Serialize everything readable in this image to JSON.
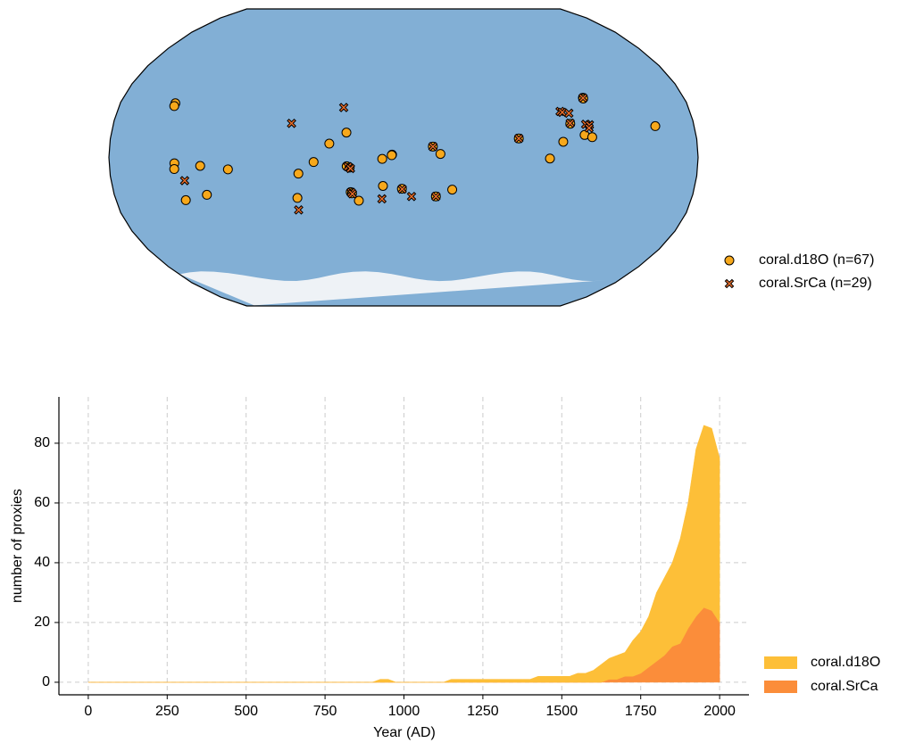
{
  "chart_data": [
    {
      "type": "map",
      "projection": "robinson",
      "central_longitude": 180,
      "series": [
        {
          "name": "coral.d18O (n=67)",
          "color": "#f7a81b",
          "marker": "circle",
          "lon": [
            35,
            34.8,
            39.8,
            39.5,
            55.5,
            43.6,
            57.6,
            72.4,
            115.5,
            113.7,
            125,
            134.5,
            144.8,
            145.2,
            147,
            152,
            147.2,
            148,
            167,
            173,
            172.8,
            167.3,
            179,
            -162,
            -157.4,
            -149.8,
            -109.2,
            -90.5,
            -82,
            -68.5,
            -64,
            -64.7,
            -64.7,
            -76.5,
            -24,
            -159.8
          ],
          "lat": [
            29.4,
            27.9,
            -3.2,
            -6.3,
            -4.6,
            -23.2,
            -20.3,
            -6.5,
            -8.8,
            -22,
            -2.5,
            7.5,
            13.5,
            -4.8,
            -5.5,
            -23.5,
            -18.8,
            -19.5,
            -0.8,
            1.5,
            1.2,
            -15.5,
            -17,
            5.9,
            1.9,
            -17.5,
            10.3,
            -0.6,
            8.5,
            12.2,
            11,
            32.4,
            32,
            18.3,
            17,
            -21.2
          ]
        },
        {
          "name": "coral.SrCa (n=29)",
          "color": "#ec6e2a",
          "marker": "x",
          "lon": [
            110.5,
            142.2,
            146,
            147.5,
            147.5,
            148.2,
            166.5,
            179.2,
            -175,
            -159.8,
            -162,
            -109.2,
            45.2,
            113.5,
            -81.5,
            -80.2,
            -76.2,
            -76.5,
            -64.7,
            -67,
            -64.7,
            -65.2
          ],
          "lat": [
            18.5,
            27.1,
            -5,
            -6,
            -19,
            -19.8,
            -22.5,
            -17.2,
            -21.2,
            -21.2,
            5.9,
            10.3,
            -12.6,
            -28.5,
            25,
            24.5,
            24,
            18.6,
            32.3,
            18,
            17.7,
            16
          ]
        }
      ]
    },
    {
      "type": "area",
      "stacked": true,
      "xlabel": "Year (AD)",
      "ylabel": "number of proxies",
      "x": [
        0,
        900,
        925,
        950,
        975,
        1000,
        1025,
        1050,
        1075,
        1100,
        1125,
        1150,
        1175,
        1200,
        1225,
        1250,
        1275,
        1300,
        1325,
        1350,
        1375,
        1400,
        1425,
        1450,
        1475,
        1500,
        1525,
        1550,
        1575,
        1600,
        1625,
        1650,
        1675,
        1700,
        1725,
        1750,
        1775,
        1800,
        1825,
        1850,
        1875,
        1900,
        1925,
        1950,
        1975,
        2000
      ],
      "series": [
        {
          "name": "coral.d18O",
          "color": "#fdbf38",
          "values": [
            0,
            0,
            1,
            1,
            0,
            0,
            0,
            0,
            0,
            0,
            0,
            1,
            1,
            1,
            1,
            1,
            1,
            1,
            1,
            1,
            1,
            1,
            2,
            2,
            2,
            2,
            2,
            3,
            3,
            4,
            6,
            7,
            8,
            8,
            12,
            14,
            17,
            23,
            26,
            28,
            35,
            42,
            56,
            61,
            61,
            55
          ]
        },
        {
          "name": "coral.SrCa",
          "color": "#fb8d3a",
          "values": [
            0,
            0,
            0,
            0,
            0,
            0,
            0,
            0,
            0,
            0,
            0,
            0,
            0,
            0,
            0,
            0,
            0,
            0,
            0,
            0,
            0,
            0,
            0,
            0,
            0,
            0,
            0,
            0,
            0,
            0,
            0,
            1,
            1,
            2,
            2,
            3,
            5,
            7,
            9,
            12,
            13,
            18,
            22,
            25,
            24,
            20
          ]
        }
      ],
      "xlim": [
        -93,
        2093
      ],
      "ylim": [
        -4.2,
        95.5
      ],
      "xticks": [
        0,
        250,
        500,
        750,
        1000,
        1250,
        1500,
        1750,
        2000
      ],
      "yticks": [
        0,
        20,
        40,
        60,
        80
      ],
      "grid": true
    }
  ]
}
